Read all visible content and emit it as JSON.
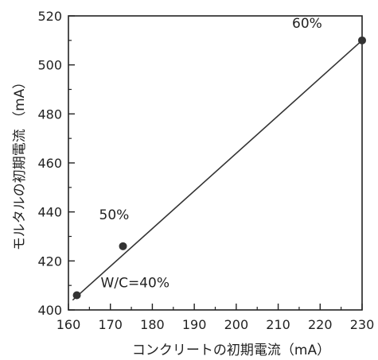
{
  "chart_data": {
    "type": "scatter",
    "xlabel": "コンクリートの初期電流（mA）",
    "ylabel": "モルタルの初期電流 （mA）",
    "xlim": [
      160,
      230
    ],
    "ylim": [
      400,
      520
    ],
    "x_ticks": [
      160,
      170,
      180,
      190,
      200,
      210,
      220,
      230
    ],
    "y_ticks": [
      400,
      420,
      440,
      460,
      480,
      500,
      520
    ],
    "grid": false,
    "series": [
      {
        "points": [
          {
            "x": 162,
            "y": 406,
            "label": "W/C=40%"
          },
          {
            "x": 173,
            "y": 426,
            "label": "50%"
          },
          {
            "x": 230,
            "y": 510,
            "label": "60%"
          }
        ]
      }
    ],
    "fit_line": {
      "x": [
        161,
        230
      ],
      "y": [
        404,
        510
      ]
    },
    "colors": {
      "axis": "#222222",
      "point": "#333333",
      "line": "#333333"
    }
  }
}
